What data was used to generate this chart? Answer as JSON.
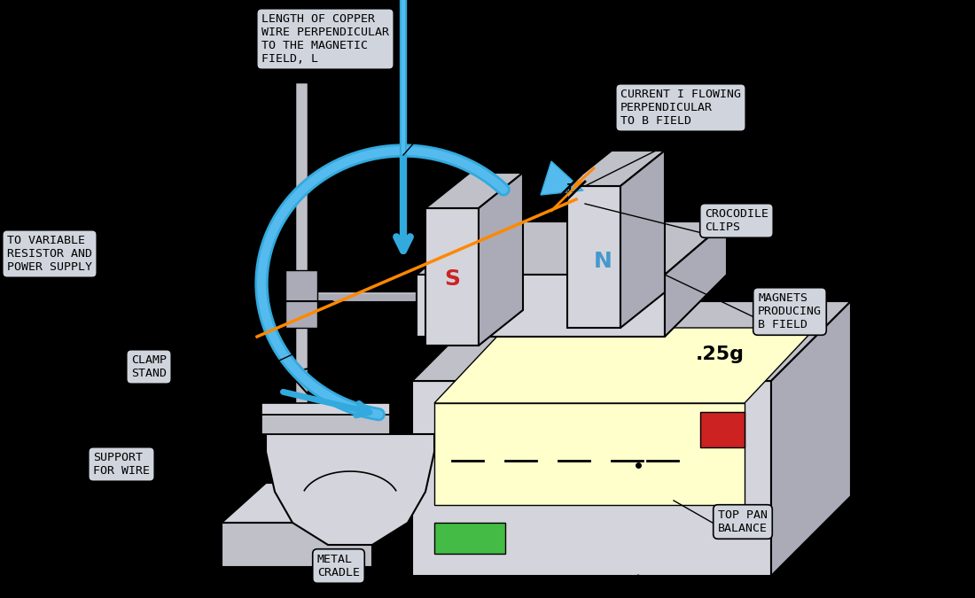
{
  "bg_color": "#000000",
  "label_bg": "#d0d4dc",
  "label_border": "#000000",
  "magnet_S_color": "#cc2222",
  "magnet_N_color": "#4499cc",
  "wire_color": "#ff8800",
  "blue_color": "#33aadd",
  "blue_fill": "#55bbee",
  "gray1": "#d4d4dc",
  "gray2": "#c0c0c8",
  "gray3": "#ababb8",
  "gray4": "#909098",
  "display_color": "#ffffcc",
  "green_btn": "#44bb44",
  "red_btn": "#cc2222",
  "labels": {
    "copper_wire": "LENGTH OF COPPER\nWIRE PERPENDICULAR\nTO THE MAGNETIC\nFIELD, L",
    "current": "CURRENT I FLOWING\nPERPENDICULAR\nTO B FIELD",
    "variable_resistor": "TO VARIABLE\nRESISTOR AND\nPOWER SUPPLY",
    "clamp_stand": "CLAMP\nSTAND",
    "crocodile": "CROCODILE\nCLIPS",
    "magnets": "MAGNETS\nPRODUCING\nB FIELD",
    "support": "SUPPORT\nFOR WIRE",
    "metal_cradle": "METAL\nCRADLE",
    "top_pan": "TOP PAN\nBALANCE"
  }
}
